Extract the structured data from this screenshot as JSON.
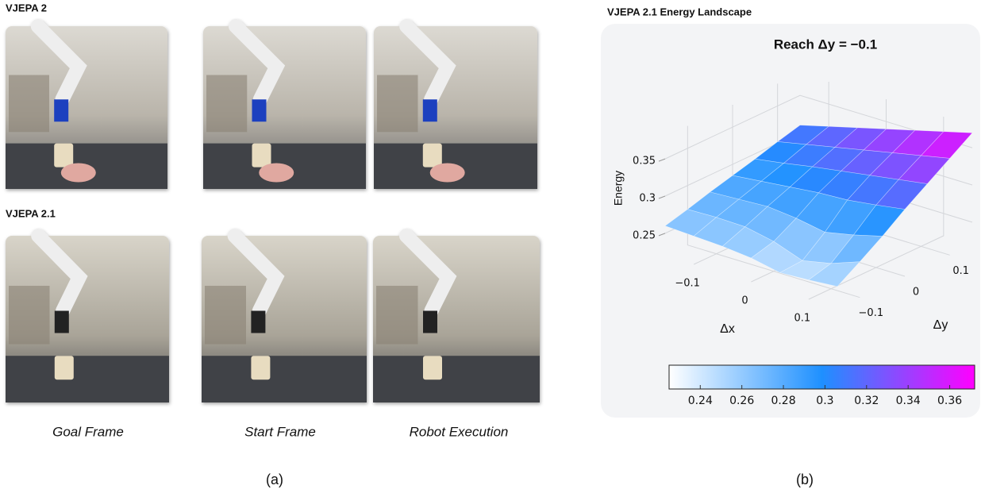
{
  "figure": {
    "panel_a": {
      "row_labels": [
        "VJEPA 2",
        "VJEPA 2.1"
      ],
      "captions": [
        "Goal Frame",
        "Start Frame",
        "Robot Execution"
      ],
      "label": "(a)"
    },
    "panel_b": {
      "title": "VJEPA 2.1 Energy Landscape",
      "label": "(b)"
    }
  },
  "chart_data": {
    "type": "surface",
    "title": "Reach Δy = −0.1",
    "xlabel": "Δx",
    "ylabel": "Δy",
    "zlabel": "Energy",
    "x": [
      -0.15,
      -0.1,
      -0.05,
      0,
      0.05,
      0.1,
      0.15
    ],
    "y": [
      -0.15,
      -0.1,
      -0.05,
      0,
      0.05,
      0.1,
      0.15
    ],
    "z": [
      [
        0.26,
        0.258,
        0.256,
        0.252,
        0.244,
        0.246,
        0.249
      ],
      [
        0.268,
        0.269,
        0.268,
        0.26,
        0.246,
        0.254,
        0.268
      ],
      [
        0.277,
        0.279,
        0.281,
        0.277,
        0.27,
        0.278,
        0.288
      ],
      [
        0.285,
        0.289,
        0.293,
        0.297,
        0.299,
        0.304,
        0.31
      ],
      [
        0.293,
        0.299,
        0.306,
        0.312,
        0.318,
        0.324,
        0.33
      ],
      [
        0.302,
        0.31,
        0.318,
        0.326,
        0.334,
        0.342,
        0.35
      ],
      [
        0.31,
        0.32,
        0.33,
        0.34,
        0.35,
        0.36,
        0.37
      ]
    ],
    "xlim": [
      -0.15,
      0.15
    ],
    "ylim": [
      -0.15,
      0.15
    ],
    "zlim": [
      0.22,
      0.38
    ],
    "xticks": [
      {
        "value": -0.1,
        "label": "−0.1"
      },
      0,
      0.1
    ],
    "yticks": [
      {
        "value": -0.1,
        "label": "−0.1"
      },
      0,
      0.1
    ],
    "zticks": [
      0.25,
      0.3,
      0.35
    ],
    "colormap": [
      "#ffffff",
      "#1e90ff",
      "#ff00ff"
    ],
    "colorbar": {
      "lim": [
        0.225,
        0.372
      ],
      "ticks": [
        0.24,
        0.26,
        0.28,
        0.3,
        0.32,
        0.34,
        0.36
      ]
    }
  }
}
